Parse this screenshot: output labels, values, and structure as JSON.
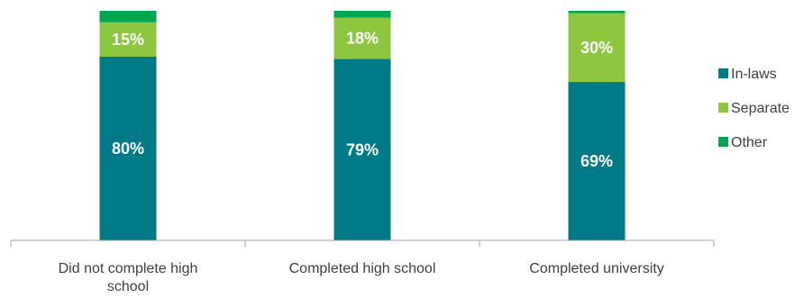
{
  "chart_data": {
    "type": "bar",
    "stacked": true,
    "categories": [
      [
        "Did not complete high",
        "school"
      ],
      [
        "Completed high school"
      ],
      [
        "Completed university"
      ]
    ],
    "series": [
      {
        "name": "In-laws",
        "values": [
          80,
          79,
          69
        ],
        "labels": [
          "80%",
          "79%",
          "69%"
        ],
        "color": "#007A87"
      },
      {
        "name": "Separate",
        "values": [
          15,
          18,
          30
        ],
        "labels": [
          "15%",
          "18%",
          "30%"
        ],
        "color": "#8DC63F"
      },
      {
        "name": "Other",
        "values": [
          5,
          3,
          1
        ],
        "labels": [
          "",
          "",
          ""
        ],
        "color": "#00A651"
      }
    ],
    "ylim": [
      0,
      100
    ],
    "grid": false,
    "legend_position": "right",
    "title": "",
    "xlabel": "",
    "ylabel": ""
  }
}
